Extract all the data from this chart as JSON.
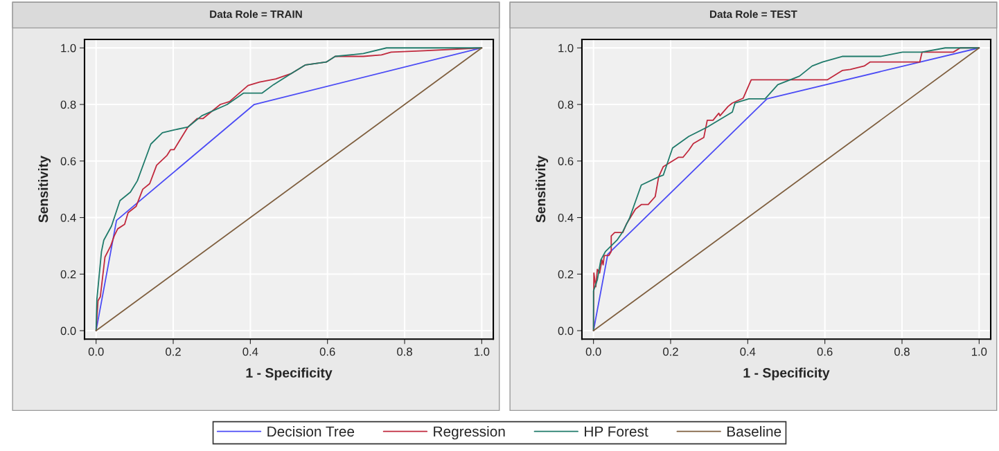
{
  "chart_data": [
    {
      "type": "line",
      "title": "Data Role = TRAIN",
      "xlabel": "1 - Specificity",
      "ylabel": "Sensitivity",
      "xlim": [
        -0.03,
        1.03
      ],
      "ylim": [
        -0.03,
        1.03
      ],
      "xticks": [
        {
          "value": 0,
          "label": "0.0"
        },
        {
          "value": 0.2,
          "label": "0.2"
        },
        {
          "value": 0.4,
          "label": "0.4"
        },
        {
          "value": 0.6,
          "label": "0.6"
        },
        {
          "value": 0.8,
          "label": "0.8"
        },
        {
          "value": 1,
          "label": "1.0"
        }
      ],
      "yticks": [
        {
          "value": 0,
          "label": "0.0"
        },
        {
          "value": 0.2,
          "label": "0.2"
        },
        {
          "value": 0.4,
          "label": "0.4"
        },
        {
          "value": 0.6,
          "label": "0.6"
        },
        {
          "value": 0.8,
          "label": "0.8"
        },
        {
          "value": 1,
          "label": "1.0"
        }
      ],
      "grid": true,
      "legend": "bottom",
      "series": [
        {
          "name": "Decision Tree",
          "color": "#4b4bf5",
          "x": [
            0,
            0.053,
            0.41,
            1
          ],
          "values": [
            0,
            0.39,
            0.8,
            1
          ]
        },
        {
          "name": "Regression",
          "color": "#c0283c",
          "x": [
            0,
            0.005,
            0.011,
            0.023,
            0.038,
            0.047,
            0.056,
            0.074,
            0.083,
            0.104,
            0.121,
            0.139,
            0.157,
            0.184,
            0.193,
            0.202,
            0.238,
            0.262,
            0.277,
            0.322,
            0.346,
            0.394,
            0.424,
            0.466,
            0.507,
            0.543,
            0.597,
            0.62,
            0.693,
            0.74,
            0.765,
            0.85,
            1
          ],
          "values": [
            0,
            0.106,
            0.12,
            0.26,
            0.3,
            0.335,
            0.36,
            0.376,
            0.417,
            0.44,
            0.5,
            0.52,
            0.585,
            0.62,
            0.64,
            0.64,
            0.72,
            0.75,
            0.75,
            0.8,
            0.81,
            0.867,
            0.879,
            0.89,
            0.91,
            0.94,
            0.95,
            0.97,
            0.97,
            0.975,
            0.985,
            0.99,
            1
          ]
        },
        {
          "name": "HP Forest",
          "color": "#1f7a6a",
          "x": [
            0,
            0.002,
            0.014,
            0.02,
            0.04,
            0.062,
            0.089,
            0.107,
            0.142,
            0.172,
            0.202,
            0.238,
            0.274,
            0.34,
            0.382,
            0.43,
            0.46,
            0.507,
            0.543,
            0.597,
            0.62,
            0.693,
            0.753,
            1
          ],
          "values": [
            0,
            0.11,
            0.28,
            0.32,
            0.37,
            0.46,
            0.49,
            0.53,
            0.66,
            0.7,
            0.71,
            0.72,
            0.76,
            0.8,
            0.84,
            0.84,
            0.87,
            0.91,
            0.94,
            0.95,
            0.97,
            0.98,
            1,
            1
          ]
        },
        {
          "name": "Baseline",
          "color": "#7f5f3f",
          "x": [
            0,
            1
          ],
          "values": [
            0,
            1
          ]
        }
      ]
    },
    {
      "type": "line",
      "title": "Data Role = TEST",
      "xlabel": "1 - Specificity",
      "ylabel": "Sensitivity",
      "xlim": [
        -0.03,
        1.03
      ],
      "ylim": [
        -0.03,
        1.03
      ],
      "xticks": [
        {
          "value": 0,
          "label": "0.0"
        },
        {
          "value": 0.2,
          "label": "0.2"
        },
        {
          "value": 0.4,
          "label": "0.4"
        },
        {
          "value": 0.6,
          "label": "0.6"
        },
        {
          "value": 0.8,
          "label": "0.8"
        },
        {
          "value": 1,
          "label": "1.0"
        }
      ],
      "yticks": [
        {
          "value": 0,
          "label": "0.0"
        },
        {
          "value": 0.2,
          "label": "0.2"
        },
        {
          "value": 0.4,
          "label": "0.4"
        },
        {
          "value": 0.6,
          "label": "0.6"
        },
        {
          "value": 0.8,
          "label": "0.8"
        },
        {
          "value": 1,
          "label": "1.0"
        }
      ],
      "grid": true,
      "series": [
        {
          "color": "#4b4bf5",
          "x": [
            0,
            0.037,
            0.45,
            1
          ],
          "values": [
            0,
            0.27,
            0.82,
            1
          ]
        },
        {
          "color": "#c0283c",
          "x": [
            0,
            0.001,
            0.006,
            0.01,
            0.016,
            0.022,
            0.025,
            0.028,
            0.04,
            0.046,
            0.046,
            0.055,
            0.076,
            0.085,
            0.109,
            0.124,
            0.142,
            0.16,
            0.169,
            0.181,
            0.22,
            0.232,
            0.247,
            0.259,
            0.286,
            0.295,
            0.31,
            0.325,
            0.328,
            0.349,
            0.36,
            0.388,
            0.409,
            0.606,
            0.645,
            0.666,
            0.702,
            0.717,
            0.846,
            0.852,
            0.933,
            0.951,
            1
          ],
          "values": [
            0,
            0.204,
            0.155,
            0.217,
            0.204,
            0.25,
            0.233,
            0.266,
            0.266,
            0.28,
            0.335,
            0.347,
            0.347,
            0.376,
            0.43,
            0.446,
            0.446,
            0.474,
            0.544,
            0.58,
            0.613,
            0.613,
            0.638,
            0.662,
            0.683,
            0.744,
            0.744,
            0.769,
            0.76,
            0.793,
            0.805,
            0.822,
            0.887,
            0.887,
            0.92,
            0.924,
            0.936,
            0.95,
            0.95,
            0.985,
            0.985,
            1,
            1
          ]
        },
        {
          "color": "#1f7a6a",
          "x": [
            0,
            0,
            0.01,
            0.019,
            0.031,
            0.061,
            0.076,
            0.094,
            0.124,
            0.169,
            0.181,
            0.205,
            0.247,
            0.295,
            0.36,
            0.367,
            0.403,
            0.445,
            0.478,
            0.534,
            0.567,
            0.594,
            0.645,
            0.744,
            0.801,
            0.852,
            0.912,
            1
          ],
          "values": [
            0,
            0.14,
            0.18,
            0.25,
            0.28,
            0.32,
            0.35,
            0.4,
            0.515,
            0.544,
            0.55,
            0.646,
            0.687,
            0.72,
            0.773,
            0.805,
            0.82,
            0.82,
            0.87,
            0.9,
            0.936,
            0.95,
            0.97,
            0.97,
            0.985,
            0.985,
            1,
            1
          ]
        },
        {
          "color": "#7f5f3f",
          "x": [
            0,
            1
          ],
          "values": [
            0,
            1
          ]
        }
      ]
    }
  ]
}
